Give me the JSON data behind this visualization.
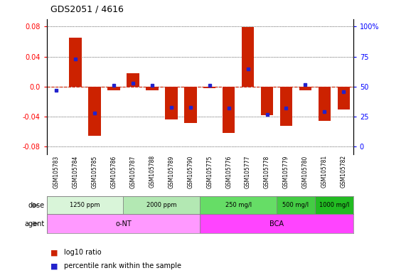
{
  "title": "GDS2051 / 4616",
  "samples": [
    "GSM105783",
    "GSM105784",
    "GSM105785",
    "GSM105786",
    "GSM105787",
    "GSM105788",
    "GSM105789",
    "GSM105790",
    "GSM105775",
    "GSM105776",
    "GSM105777",
    "GSM105778",
    "GSM105779",
    "GSM105780",
    "GSM105781",
    "GSM105782"
  ],
  "log10_ratio": [
    0.0,
    0.065,
    -0.065,
    -0.005,
    0.018,
    -0.005,
    -0.044,
    -0.048,
    -0.002,
    -0.062,
    0.079,
    -0.038,
    -0.052,
    -0.005,
    -0.046,
    -0.03
  ],
  "percentile_rank": [
    47,
    73,
    28,
    51,
    53,
    51,
    33,
    33,
    51,
    32,
    65,
    27,
    32,
    52,
    29,
    46
  ],
  "ylim": [
    -0.09,
    0.09
  ],
  "yticks_left": [
    -0.08,
    -0.04,
    0.0,
    0.04,
    0.08
  ],
  "yticks_right_labels": [
    "0",
    "25",
    "50",
    "75",
    "100%"
  ],
  "doses": [
    {
      "label": "1250 ppm",
      "start": 0,
      "end": 4,
      "color": "#d9f5d9"
    },
    {
      "label": "2000 ppm",
      "start": 4,
      "end": 8,
      "color": "#b3e8b3"
    },
    {
      "label": "250 mg/l",
      "start": 8,
      "end": 12,
      "color": "#66dd66"
    },
    {
      "label": "500 mg/l",
      "start": 12,
      "end": 14,
      "color": "#44cc44"
    },
    {
      "label": "1000 mg/l",
      "start": 14,
      "end": 16,
      "color": "#22bb22"
    }
  ],
  "agents": [
    {
      "label": "o-NT",
      "start": 0,
      "end": 8,
      "color": "#ff99ff"
    },
    {
      "label": "BCA",
      "start": 8,
      "end": 16,
      "color": "#ff44ff"
    }
  ],
  "bar_color": "#cc2200",
  "dot_color": "#2222cc",
  "background_color": "#ffffff",
  "zero_line_color": "#cc2200",
  "bar_width": 0.65,
  "legend_items": [
    {
      "color": "#cc2200",
      "label": "log10 ratio"
    },
    {
      "color": "#2222cc",
      "label": "percentile rank within the sample"
    }
  ]
}
